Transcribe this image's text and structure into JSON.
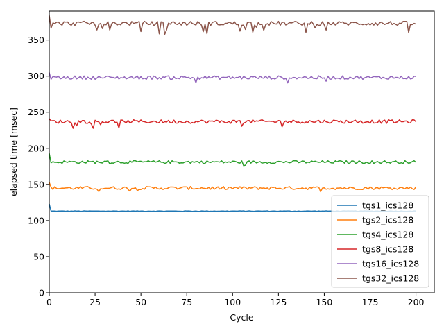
{
  "chart_data": {
    "type": "line",
    "xlabel": "Cycle",
    "ylabel": "elapsed time [msec]",
    "xlim": [
      0,
      210
    ],
    "ylim": [
      0,
      390
    ],
    "xticks": [
      0,
      25,
      50,
      75,
      100,
      125,
      150,
      175,
      200
    ],
    "yticks": [
      0,
      50,
      100,
      150,
      200,
      250,
      300,
      350
    ],
    "grid": false,
    "legend_position": "lower-right",
    "series": [
      {
        "name": "tgs1_ics128",
        "color": "#1f77b4",
        "base": 113,
        "first": 123,
        "noise": 0.4,
        "spikes": 0,
        "spike_size": 0
      },
      {
        "name": "tgs2_ics128",
        "color": "#ff7f0e",
        "base": 145,
        "first": 153,
        "noise": 2.2,
        "spikes": 0.02,
        "spike_size": -4
      },
      {
        "name": "tgs4_ics128",
        "color": "#2ca02c",
        "base": 181,
        "first": 193,
        "noise": 2.0,
        "spikes": 0.03,
        "spike_size": -4
      },
      {
        "name": "tgs8_ics128",
        "color": "#d62728",
        "base": 237,
        "first": 241,
        "noise": 2.5,
        "spikes": 0.04,
        "spike_size": -8
      },
      {
        "name": "tgs16_ics128",
        "color": "#9467bd",
        "base": 298,
        "first": 305,
        "noise": 2.5,
        "spikes": 0.03,
        "spike_size": -9
      },
      {
        "name": "tgs32_ics128",
        "color": "#8c564b",
        "base": 373,
        "first": 384,
        "noise": 3.0,
        "spikes": 0.08,
        "spike_size": -14
      }
    ],
    "x_count": 201
  }
}
